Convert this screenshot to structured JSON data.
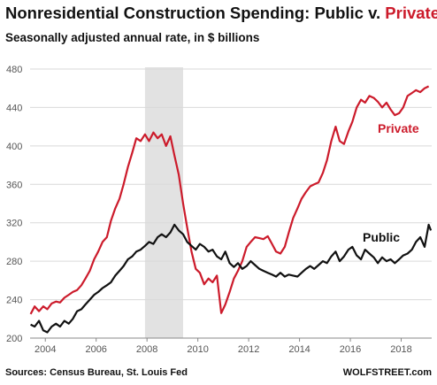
{
  "chart_data": {
    "type": "line",
    "title_main": "Nonresidential Construction Spending: Public v. ",
    "title_highlight": "Private",
    "subtitle": "Seasonally adjusted annual rate, in $ billions",
    "xlabel": "",
    "ylabel": "",
    "xlim": [
      2003.4,
      2019.2
    ],
    "ylim": [
      200,
      480
    ],
    "yticks": [
      200,
      240,
      280,
      320,
      360,
      400,
      440,
      480
    ],
    "xticks": [
      2004,
      2006,
      2008,
      2010,
      2012,
      2014,
      2016,
      2018
    ],
    "grid": "horizontal",
    "recession_band": [
      2007.92,
      2009.42
    ],
    "series": [
      {
        "name": "Private",
        "color": "#cc1b2b",
        "points": [
          [
            2003.42,
            225
          ],
          [
            2003.58,
            233
          ],
          [
            2003.75,
            228
          ],
          [
            2003.92,
            233
          ],
          [
            2004.08,
            230
          ],
          [
            2004.25,
            236
          ],
          [
            2004.42,
            238
          ],
          [
            2004.58,
            237
          ],
          [
            2004.75,
            242
          ],
          [
            2004.92,
            245
          ],
          [
            2005.08,
            248
          ],
          [
            2005.25,
            250
          ],
          [
            2005.42,
            255
          ],
          [
            2005.58,
            262
          ],
          [
            2005.75,
            270
          ],
          [
            2005.92,
            282
          ],
          [
            2006.08,
            290
          ],
          [
            2006.25,
            300
          ],
          [
            2006.42,
            305
          ],
          [
            2006.58,
            322
          ],
          [
            2006.75,
            335
          ],
          [
            2006.92,
            345
          ],
          [
            2007.08,
            360
          ],
          [
            2007.25,
            378
          ],
          [
            2007.42,
            393
          ],
          [
            2007.58,
            408
          ],
          [
            2007.75,
            405
          ],
          [
            2007.92,
            412
          ],
          [
            2008.08,
            405
          ],
          [
            2008.25,
            414
          ],
          [
            2008.42,
            408
          ],
          [
            2008.58,
            412
          ],
          [
            2008.75,
            400
          ],
          [
            2008.92,
            410
          ],
          [
            2009.08,
            390
          ],
          [
            2009.25,
            370
          ],
          [
            2009.42,
            340
          ],
          [
            2009.58,
            315
          ],
          [
            2009.75,
            290
          ],
          [
            2009.92,
            272
          ],
          [
            2010.08,
            268
          ],
          [
            2010.25,
            256
          ],
          [
            2010.42,
            262
          ],
          [
            2010.58,
            258
          ],
          [
            2010.75,
            265
          ],
          [
            2010.92,
            226
          ],
          [
            2011.08,
            235
          ],
          [
            2011.25,
            248
          ],
          [
            2011.42,
            262
          ],
          [
            2011.58,
            270
          ],
          [
            2011.75,
            280
          ],
          [
            2011.92,
            295
          ],
          [
            2012.08,
            300
          ],
          [
            2012.25,
            305
          ],
          [
            2012.42,
            304
          ],
          [
            2012.58,
            303
          ],
          [
            2012.75,
            306
          ],
          [
            2012.92,
            298
          ],
          [
            2013.08,
            290
          ],
          [
            2013.25,
            288
          ],
          [
            2013.42,
            295
          ],
          [
            2013.58,
            310
          ],
          [
            2013.75,
            325
          ],
          [
            2013.92,
            335
          ],
          [
            2014.08,
            345
          ],
          [
            2014.25,
            352
          ],
          [
            2014.42,
            358
          ],
          [
            2014.58,
            360
          ],
          [
            2014.75,
            362
          ],
          [
            2014.92,
            372
          ],
          [
            2015.08,
            385
          ],
          [
            2015.25,
            405
          ],
          [
            2015.42,
            420
          ],
          [
            2015.58,
            405
          ],
          [
            2015.75,
            402
          ],
          [
            2015.92,
            415
          ],
          [
            2016.08,
            425
          ],
          [
            2016.25,
            440
          ],
          [
            2016.42,
            448
          ],
          [
            2016.58,
            445
          ],
          [
            2016.75,
            452
          ],
          [
            2016.92,
            450
          ],
          [
            2017.08,
            446
          ],
          [
            2017.25,
            440
          ],
          [
            2017.42,
            445
          ],
          [
            2017.58,
            438
          ],
          [
            2017.75,
            432
          ],
          [
            2017.92,
            434
          ],
          [
            2018.08,
            440
          ],
          [
            2018.25,
            452
          ],
          [
            2018.42,
            455
          ],
          [
            2018.58,
            458
          ],
          [
            2018.75,
            456
          ],
          [
            2018.92,
            460
          ],
          [
            2019.08,
            462
          ]
        ]
      },
      {
        "name": "Public",
        "color": "#111111",
        "points": [
          [
            2003.42,
            214
          ],
          [
            2003.58,
            212
          ],
          [
            2003.75,
            218
          ],
          [
            2003.92,
            208
          ],
          [
            2004.08,
            206
          ],
          [
            2004.25,
            212
          ],
          [
            2004.42,
            215
          ],
          [
            2004.58,
            212
          ],
          [
            2004.75,
            218
          ],
          [
            2004.92,
            215
          ],
          [
            2005.08,
            220
          ],
          [
            2005.25,
            228
          ],
          [
            2005.42,
            230
          ],
          [
            2005.58,
            235
          ],
          [
            2005.75,
            240
          ],
          [
            2005.92,
            245
          ],
          [
            2006.08,
            248
          ],
          [
            2006.25,
            252
          ],
          [
            2006.42,
            255
          ],
          [
            2006.58,
            258
          ],
          [
            2006.75,
            265
          ],
          [
            2006.92,
            270
          ],
          [
            2007.08,
            275
          ],
          [
            2007.25,
            282
          ],
          [
            2007.42,
            285
          ],
          [
            2007.58,
            290
          ],
          [
            2007.75,
            292
          ],
          [
            2007.92,
            296
          ],
          [
            2008.08,
            300
          ],
          [
            2008.25,
            298
          ],
          [
            2008.42,
            305
          ],
          [
            2008.58,
            308
          ],
          [
            2008.75,
            305
          ],
          [
            2008.92,
            310
          ],
          [
            2009.08,
            318
          ],
          [
            2009.25,
            312
          ],
          [
            2009.42,
            308
          ],
          [
            2009.58,
            300
          ],
          [
            2009.75,
            296
          ],
          [
            2009.92,
            292
          ],
          [
            2010.08,
            298
          ],
          [
            2010.25,
            295
          ],
          [
            2010.42,
            290
          ],
          [
            2010.58,
            292
          ],
          [
            2010.75,
            285
          ],
          [
            2010.92,
            282
          ],
          [
            2011.08,
            290
          ],
          [
            2011.25,
            278
          ],
          [
            2011.42,
            274
          ],
          [
            2011.58,
            278
          ],
          [
            2011.75,
            272
          ],
          [
            2011.92,
            275
          ],
          [
            2012.08,
            280
          ],
          [
            2012.25,
            276
          ],
          [
            2012.42,
            272
          ],
          [
            2012.58,
            270
          ],
          [
            2012.75,
            268
          ],
          [
            2012.92,
            266
          ],
          [
            2013.08,
            264
          ],
          [
            2013.25,
            268
          ],
          [
            2013.42,
            264
          ],
          [
            2013.58,
            266
          ],
          [
            2013.75,
            265
          ],
          [
            2013.92,
            264
          ],
          [
            2014.08,
            268
          ],
          [
            2014.25,
            272
          ],
          [
            2014.42,
            275
          ],
          [
            2014.58,
            272
          ],
          [
            2014.75,
            276
          ],
          [
            2014.92,
            280
          ],
          [
            2015.08,
            278
          ],
          [
            2015.25,
            285
          ],
          [
            2015.42,
            290
          ],
          [
            2015.58,
            280
          ],
          [
            2015.75,
            285
          ],
          [
            2015.92,
            292
          ],
          [
            2016.08,
            295
          ],
          [
            2016.25,
            286
          ],
          [
            2016.42,
            282
          ],
          [
            2016.58,
            292
          ],
          [
            2016.75,
            288
          ],
          [
            2016.92,
            284
          ],
          [
            2017.08,
            278
          ],
          [
            2017.25,
            284
          ],
          [
            2017.42,
            280
          ],
          [
            2017.58,
            282
          ],
          [
            2017.75,
            278
          ],
          [
            2017.92,
            282
          ],
          [
            2018.08,
            286
          ],
          [
            2018.25,
            288
          ],
          [
            2018.42,
            292
          ],
          [
            2018.58,
            300
          ],
          [
            2018.75,
            305
          ],
          [
            2018.92,
            295
          ],
          [
            2019.08,
            318
          ],
          [
            2019.17,
            312
          ]
        ]
      }
    ],
    "annotations": [
      {
        "text": "Private",
        "series": "Private"
      },
      {
        "text": "Public",
        "series": "Public"
      }
    ],
    "source": "Sources: Census Bureau, St. Louis Fed",
    "credit": "WOLFSTREET.com"
  }
}
